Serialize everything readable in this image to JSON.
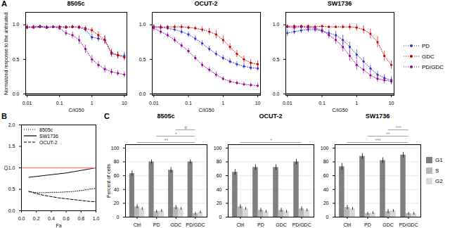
{
  "chart_data": [
    {
      "type": "line",
      "panel": "A",
      "title": "8505c",
      "xlabel": "C/IG50",
      "ylabel": "Normalized response to the untreated",
      "log": "x",
      "x": [
        0.01,
        0.0158,
        0.025,
        0.04,
        0.063,
        0.1,
        0.158,
        0.25,
        0.4,
        0.63,
        1.0,
        1.58,
        2.5,
        4.0,
        6.3,
        10.0
      ],
      "xlim": [
        0.009,
        12
      ],
      "xticks": [
        0.01,
        0.1,
        1,
        10
      ],
      "ylim": [
        -0.02,
        1.18
      ],
      "yticks": [
        {
          "value": 0,
          "label": "0.0"
        },
        0.5,
        {
          "value": 1,
          "label": "1.0"
        }
      ],
      "reference_lines": [
        {
          "y": 0,
          "color": "black"
        }
      ],
      "series": [
        {
          "name": "PD",
          "color": "#3333cc",
          "marker": "dot",
          "line_style": "dotted",
          "values": [
            0.97,
            0.97,
            0.98,
            0.97,
            0.97,
            0.97,
            0.96,
            0.97,
            0.96,
            0.93,
            0.82,
            0.8,
            0.78,
            0.58,
            0.56,
            0.55
          ],
          "errors": [
            0.03,
            0.03,
            0.02,
            0.02,
            0.02,
            0.02,
            0.02,
            0.03,
            0.03,
            0.04,
            0.05,
            0.05,
            0.06,
            0.05,
            0.05,
            0.05
          ]
        },
        {
          "name": "GDC",
          "color": "#cc0000",
          "marker": "dot",
          "line_style": "dotted",
          "values": [
            0.96,
            0.97,
            0.97,
            0.96,
            0.97,
            0.97,
            0.97,
            0.97,
            0.97,
            0.95,
            0.92,
            0.85,
            0.78,
            0.6,
            0.56,
            0.53
          ],
          "errors": [
            0.03,
            0.02,
            0.02,
            0.02,
            0.02,
            0.02,
            0.02,
            0.02,
            0.02,
            0.03,
            0.04,
            0.05,
            0.06,
            0.05,
            0.05,
            0.05
          ]
        },
        {
          "name": "PD/GDC",
          "color": "#990099",
          "marker": "dot",
          "line_style": "dotted",
          "values": [
            0.97,
            0.96,
            0.97,
            0.96,
            0.97,
            0.95,
            0.88,
            0.85,
            0.78,
            0.65,
            0.5,
            0.42,
            0.36,
            0.32,
            0.3,
            0.28
          ],
          "errors": [
            0.02,
            0.02,
            0.02,
            0.02,
            0.02,
            0.03,
            0.04,
            0.05,
            0.06,
            0.06,
            0.06,
            0.05,
            0.05,
            0.04,
            0.04,
            0.04
          ]
        }
      ]
    },
    {
      "type": "line",
      "title": "OCUT-2",
      "xlabel": "C/IG50",
      "log": "x",
      "x": [
        0.01,
        0.0158,
        0.025,
        0.04,
        0.063,
        0.1,
        0.158,
        0.25,
        0.4,
        0.63,
        1.0,
        1.58,
        2.5,
        4.0,
        6.3,
        10.0
      ],
      "xlim": [
        0.009,
        12
      ],
      "xticks": [
        0.01,
        0.1,
        1,
        10
      ],
      "ylim": [
        -0.02,
        1.18
      ],
      "yticks": [
        {
          "value": 0,
          "label": "0.0"
        },
        0.5,
        {
          "value": 1,
          "label": "1.0"
        }
      ],
      "reference_lines": [
        {
          "y": 0,
          "color": "black"
        }
      ],
      "series": [
        {
          "name": "PD",
          "color": "#3333cc",
          "marker": "dot",
          "line_style": "dotted",
          "values": [
            0.97,
            0.96,
            0.95,
            0.93,
            0.9,
            0.86,
            0.8,
            0.73,
            0.65,
            0.58,
            0.52,
            0.47,
            0.43,
            0.4,
            0.38,
            0.37
          ],
          "errors": [
            0.03,
            0.03,
            0.03,
            0.03,
            0.04,
            0.04,
            0.04,
            0.04,
            0.04,
            0.04,
            0.04,
            0.04,
            0.04,
            0.04,
            0.04,
            0.04
          ]
        },
        {
          "name": "GDC",
          "color": "#cc0000",
          "marker": "dot",
          "line_style": "dotted",
          "values": [
            0.97,
            0.97,
            0.97,
            0.97,
            0.97,
            0.96,
            0.95,
            0.93,
            0.9,
            0.86,
            0.78,
            0.68,
            0.58,
            0.5,
            0.45,
            0.43
          ],
          "errors": [
            0.03,
            0.03,
            0.02,
            0.03,
            0.03,
            0.03,
            0.03,
            0.04,
            0.05,
            0.06,
            0.06,
            0.05,
            0.05,
            0.05,
            0.05,
            0.05
          ]
        },
        {
          "name": "PD/GDC",
          "color": "#990099",
          "marker": "dot",
          "line_style": "dotted",
          "values": [
            0.95,
            0.9,
            0.85,
            0.78,
            0.7,
            0.62,
            0.52,
            0.42,
            0.35,
            0.28,
            0.22,
            0.18,
            0.16,
            0.14,
            0.13,
            0.12
          ],
          "errors": [
            0.04,
            0.04,
            0.04,
            0.04,
            0.04,
            0.04,
            0.04,
            0.04,
            0.04,
            0.04,
            0.03,
            0.03,
            0.03,
            0.03,
            0.03,
            0.03
          ]
        }
      ]
    },
    {
      "type": "line",
      "title": "SW1736",
      "xlabel": "C/IG50",
      "log": "x",
      "legend": "right",
      "x": [
        0.01,
        0.0158,
        0.025,
        0.04,
        0.063,
        0.1,
        0.158,
        0.25,
        0.4,
        0.63,
        1.0,
        1.58,
        2.5,
        4.0,
        6.3,
        10.0
      ],
      "xlim": [
        0.009,
        12
      ],
      "xticks": [
        0.01,
        0.1,
        1,
        10
      ],
      "ylim": [
        -0.02,
        1.18
      ],
      "yticks": [
        {
          "value": 0,
          "label": "0.0"
        },
        0.5,
        {
          "value": 1,
          "label": "1.0"
        }
      ],
      "reference_lines": [
        {
          "y": 0,
          "color": "black"
        }
      ],
      "series": [
        {
          "name": "PD",
          "color": "#3333cc",
          "marker": "dot",
          "line_style": "dotted",
          "values": [
            0.88,
            0.9,
            0.92,
            0.93,
            0.93,
            0.91,
            0.88,
            0.85,
            0.78,
            0.68,
            0.57,
            0.47,
            0.37,
            0.28,
            0.23,
            0.2
          ],
          "errors": [
            0.05,
            0.04,
            0.04,
            0.04,
            0.04,
            0.04,
            0.05,
            0.06,
            0.07,
            0.07,
            0.07,
            0.06,
            0.05,
            0.05,
            0.05,
            0.05
          ]
        },
        {
          "name": "GDC",
          "color": "#cc0000",
          "marker": "dot",
          "line_style": "dotted",
          "values": [
            0.98,
            0.98,
            0.98,
            0.98,
            0.97,
            0.98,
            0.97,
            0.97,
            0.97,
            0.97,
            0.96,
            0.93,
            0.87,
            0.75,
            0.55,
            0.42
          ],
          "errors": [
            0.02,
            0.02,
            0.02,
            0.02,
            0.02,
            0.02,
            0.02,
            0.02,
            0.03,
            0.04,
            0.05,
            0.06,
            0.07,
            0.08,
            0.07,
            0.06
          ]
        },
        {
          "name": "PD/GDC",
          "color": "#990099",
          "marker": "dot",
          "line_style": "dotted",
          "values": [
            0.97,
            0.96,
            0.97,
            0.96,
            0.95,
            0.92,
            0.85,
            0.78,
            0.68,
            0.55,
            0.42,
            0.35,
            0.27,
            0.22,
            0.2,
            0.18
          ],
          "errors": [
            0.02,
            0.02,
            0.02,
            0.02,
            0.03,
            0.04,
            0.05,
            0.06,
            0.07,
            0.07,
            0.07,
            0.06,
            0.06,
            0.05,
            0.05,
            0.05
          ]
        }
      ]
    },
    {
      "type": "line",
      "panel": "B",
      "xlabel": "Fa",
      "ylabel": "CI",
      "legend": "upper left",
      "x": [
        0.1,
        0.2,
        0.3,
        0.4,
        0.5,
        0.6,
        0.7,
        0.8,
        0.9,
        1.0
      ],
      "xlim": [
        0.0,
        1.0
      ],
      "xticks": [
        {
          "value": 0,
          "label": "0.0"
        },
        0.2,
        0.4,
        0.6,
        0.8,
        {
          "value": 1,
          "label": "1.0"
        }
      ],
      "ylim": [
        0.0,
        2.0
      ],
      "yticks": [
        {
          "value": 0,
          "label": "0.0"
        },
        0.5,
        {
          "value": 1,
          "label": "1.0"
        },
        1.5,
        {
          "value": 2,
          "label": "2.0"
        }
      ],
      "reference_lines": [
        {
          "y": 1.0,
          "color": "#ff8888"
        }
      ],
      "series": [
        {
          "name": "8505c",
          "color": "black",
          "line_style": "dotted",
          "values": [
            0.45,
            0.42,
            0.42,
            0.43,
            0.43,
            0.44,
            0.45,
            0.47,
            0.5,
            0.52
          ]
        },
        {
          "name": "SW1736",
          "color": "black",
          "line_style": "solid",
          "values": [
            0.78,
            0.8,
            0.82,
            0.84,
            0.86,
            0.88,
            0.91,
            0.94,
            0.97,
            1.0
          ]
        },
        {
          "name": "OCUT-2",
          "color": "black",
          "line_style": "dashed",
          "values": [
            0.45,
            0.4,
            0.36,
            0.33,
            0.3,
            0.28,
            0.26,
            0.24,
            0.22,
            0.21
          ]
        }
      ]
    },
    {
      "type": "bar",
      "panel": "C",
      "title": "8505c",
      "ylabel": "Percent of cells",
      "grid": true,
      "categories": [
        "Ctrl",
        "PD",
        "GDC",
        "PD/GDC"
      ],
      "ylim": [
        0,
        105
      ],
      "yticks": [
        0,
        20,
        40,
        60,
        80,
        100
      ],
      "series": [
        {
          "name": "G1",
          "color": "#808080",
          "values": [
            63,
            80,
            68,
            80
          ],
          "errors": [
            4,
            3,
            4,
            3
          ]
        },
        {
          "name": "S",
          "color": "#b8b8b8",
          "values": [
            15,
            8,
            14,
            5
          ],
          "errors": [
            3,
            2,
            3,
            2
          ]
        },
        {
          "name": "G2",
          "color": "#d8d8d8",
          "values": [
            12,
            9,
            12,
            7
          ],
          "errors": [
            2,
            2,
            2,
            2
          ]
        }
      ],
      "significance": [
        {
          "from": "Ctrl",
          "to": "PD/GDC",
          "label": "**",
          "color": "#888888"
        },
        {
          "from": "PD",
          "to": "PD/GDC",
          "label": "*",
          "color": "#888888"
        },
        {
          "from": "GDC",
          "to": "PD/GDC",
          "label": "#",
          "color": "#888888"
        }
      ]
    },
    {
      "type": "bar",
      "title": "OCUT-2",
      "grid": true,
      "categories": [
        "Ctrl",
        "PD",
        "GDC",
        "PD/GDC"
      ],
      "ylim": [
        0,
        105
      ],
      "yticks": [
        0,
        20,
        40,
        60,
        80,
        100
      ],
      "series": [
        {
          "name": "G1",
          "color": "#808080",
          "values": [
            65,
            72,
            72,
            80
          ],
          "errors": [
            4,
            4,
            4,
            4
          ]
        },
        {
          "name": "S",
          "color": "#b8b8b8",
          "values": [
            15,
            10,
            10,
            12
          ],
          "errors": [
            3,
            3,
            3,
            3
          ]
        },
        {
          "name": "G2",
          "color": "#d8d8d8",
          "values": [
            12,
            8,
            8,
            10
          ],
          "errors": [
            2,
            2,
            2,
            2
          ]
        }
      ],
      "significance": [
        {
          "from": "Ctrl",
          "to": "PD/GDC",
          "label": "*",
          "color": "#888888"
        }
      ]
    },
    {
      "type": "bar",
      "title": "SW1736",
      "grid": true,
      "legend": "right",
      "categories": [
        "Ctrl",
        "PD",
        "GDC",
        "PD/GDC"
      ],
      "ylim": [
        0,
        105
      ],
      "yticks": [
        0,
        20,
        40,
        60,
        80,
        100
      ],
      "series": [
        {
          "name": "G1",
          "color": "#808080",
          "values": [
            73,
            88,
            82,
            90
          ],
          "errors": [
            5,
            4,
            4,
            4
          ]
        },
        {
          "name": "S",
          "color": "#b8b8b8",
          "values": [
            14,
            5,
            8,
            5
          ],
          "errors": [
            3,
            2,
            3,
            2
          ]
        },
        {
          "name": "G2",
          "color": "#d8d8d8",
          "values": [
            12,
            6,
            9,
            5
          ],
          "errors": [
            2,
            2,
            2,
            2
          ]
        }
      ],
      "significance": [
        {
          "from": "Ctrl",
          "to": "PD/GDC",
          "label": "***",
          "color": "#888888"
        },
        {
          "from": "PD",
          "to": "PD/GDC",
          "label": "**",
          "color": "#888888"
        },
        {
          "from": "GDC",
          "to": "PD/GDC",
          "label": "***",
          "color": "#888888"
        }
      ]
    }
  ]
}
